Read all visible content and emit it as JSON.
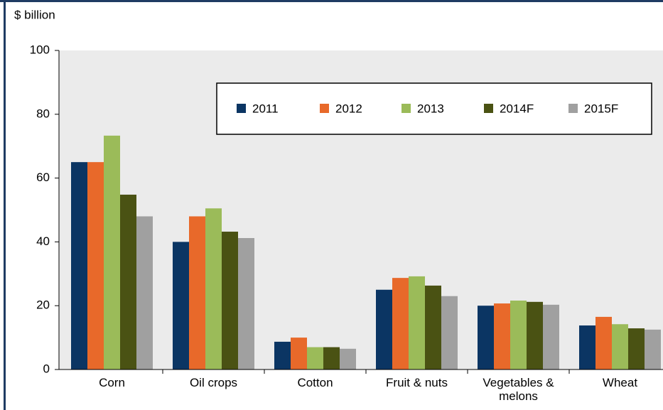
{
  "chart_data": {
    "type": "bar",
    "y_label": "$ billion",
    "categories": [
      "Corn",
      "Oil crops",
      "Cotton",
      "Fruit & nuts",
      "Vegetables & melons",
      "Wheat"
    ],
    "series": [
      {
        "name": "2011",
        "color": "#0b3563",
        "values": [
          65,
          40,
          8.7,
          25,
          20,
          13.8
        ]
      },
      {
        "name": "2012",
        "color": "#e8692a",
        "values": [
          65,
          48,
          10,
          28.7,
          20.7,
          16.5
        ]
      },
      {
        "name": "2013",
        "color": "#9bbb59",
        "values": [
          73.3,
          50.5,
          7,
          29.2,
          21.6,
          14.2
        ]
      },
      {
        "name": "2014F",
        "color": "#4a5213",
        "values": [
          54.8,
          43.2,
          7,
          26.3,
          21.2,
          12.9
        ]
      },
      {
        "name": "2015F",
        "color": "#a0a0a0",
        "values": [
          48,
          41.2,
          6.5,
          23,
          20.3,
          12.5
        ]
      }
    ],
    "ylim": [
      0,
      100
    ],
    "yticks": [
      0,
      20,
      40,
      60,
      80,
      100
    ],
    "legend": "top-right"
  }
}
